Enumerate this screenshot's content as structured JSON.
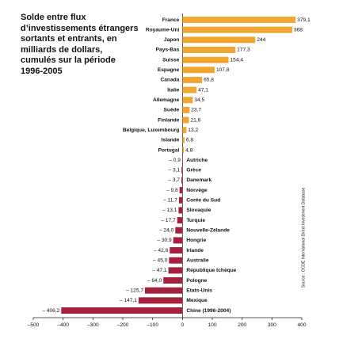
{
  "chart_data": {
    "type": "barh",
    "title": "Solde entre flux d’investissements étrangers sortants et entrants, en milliards de dollars, cumulés sur la période 1996-2005",
    "source": "Source : OCDE International Direct Investment Database",
    "categories": [
      "France",
      "Royaume-Uni",
      "Japon",
      "Pays-Bas",
      "Suisse",
      "Espagne",
      "Canada",
      "Italie",
      "Allemagne",
      "Suède",
      "Finlande",
      "Belgique, Luxembourg",
      "Islande",
      "Portugal",
      "Autriche",
      "Grèce",
      "Danemark",
      "Norvège",
      "Corée du Sud",
      "Slovaquie",
      "Turquie",
      "Nouvelle-Zélande",
      "Hongrie",
      "Irlande",
      "Australie",
      "République tchèque",
      "Pologne",
      "Etats-Unis",
      "Mexique",
      "Chine (1996-2004)"
    ],
    "values": [
      379.1,
      368,
      244,
      177.3,
      154.4,
      107.8,
      65.8,
      47.1,
      34.5,
      23.7,
      21.6,
      13.2,
      6.8,
      4.8,
      -0.9,
      -3.1,
      -3.7,
      -9.8,
      -11.7,
      -13.1,
      -17.7,
      -24.0,
      -30.9,
      -42.6,
      -45.0,
      -47.1,
      -64.0,
      -125.7,
      -147.1,
      -406.2
    ],
    "value_labels": [
      "379,1",
      "368",
      "244",
      "177,3",
      "154,4",
      "107,8",
      "65,8",
      "47,1",
      "34,5",
      "23,7",
      "21,6",
      "13,2",
      "6,8",
      "4,8",
      "– 0,9",
      "– 3,1",
      "– 3,7",
      "– 9,8",
      "– 11,7",
      "– 13,1",
      "– 17,7",
      "– 24,0",
      "– 30,9",
      "– 42,6",
      "– 45,0",
      "– 47,1",
      "– 64,0",
      "– 125,7",
      "– 147,1",
      "– 406,2"
    ],
    "positive_color": "#f0a630",
    "negative_color": "#a4203c",
    "xlim": [
      -500,
      400
    ],
    "xticks": [
      {
        "value": -500,
        "label": "–500"
      },
      {
        "value": -400,
        "label": "–400"
      },
      {
        "value": -300,
        "label": "–300"
      },
      {
        "value": -200,
        "label": "–200"
      },
      {
        "value": -100,
        "label": "–100"
      },
      0,
      100,
      200,
      300,
      400
    ]
  }
}
